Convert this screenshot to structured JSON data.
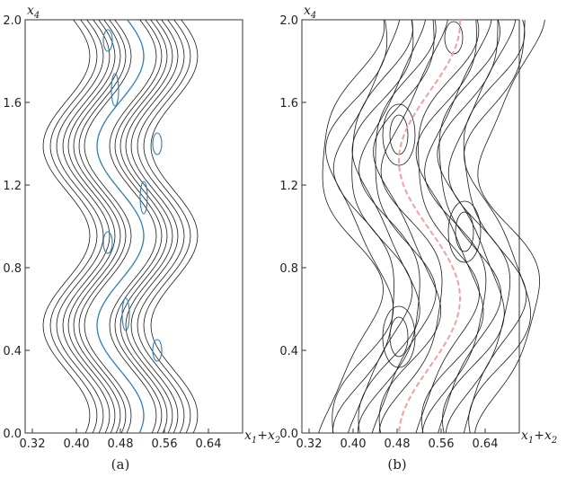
{
  "panels": [
    {
      "caption": "(a)",
      "x_ticks": [
        "0.32",
        "0.40",
        "0.48",
        "0.56",
        "0.64"
      ],
      "y_ticks": [
        "0.0",
        "0.4",
        "0.8",
        "1.2",
        "1.6",
        "2.0"
      ],
      "y_axis_var": "x",
      "y_axis_sub": "4",
      "x_axis_var1": "x",
      "x_axis_sub1": "1",
      "x_axis_plus": "+",
      "x_axis_var2": "x",
      "x_axis_sub2": "2",
      "ridge_color": "#2f7fb5"
    },
    {
      "caption": "(b)",
      "x_ticks": [
        "0.32",
        "0.40",
        "0.48",
        "0.56",
        "0.64"
      ],
      "y_ticks": [
        "0.0",
        "0.4",
        "0.8",
        "1.2",
        "1.6",
        "2.0"
      ],
      "y_axis_var": "x",
      "y_axis_sub": "4",
      "x_axis_var1": "x",
      "x_axis_sub1": "1",
      "x_axis_plus": "+",
      "x_axis_var2": "x",
      "x_axis_sub2": "2",
      "ridge_color": "#f4a0a0"
    }
  ]
}
